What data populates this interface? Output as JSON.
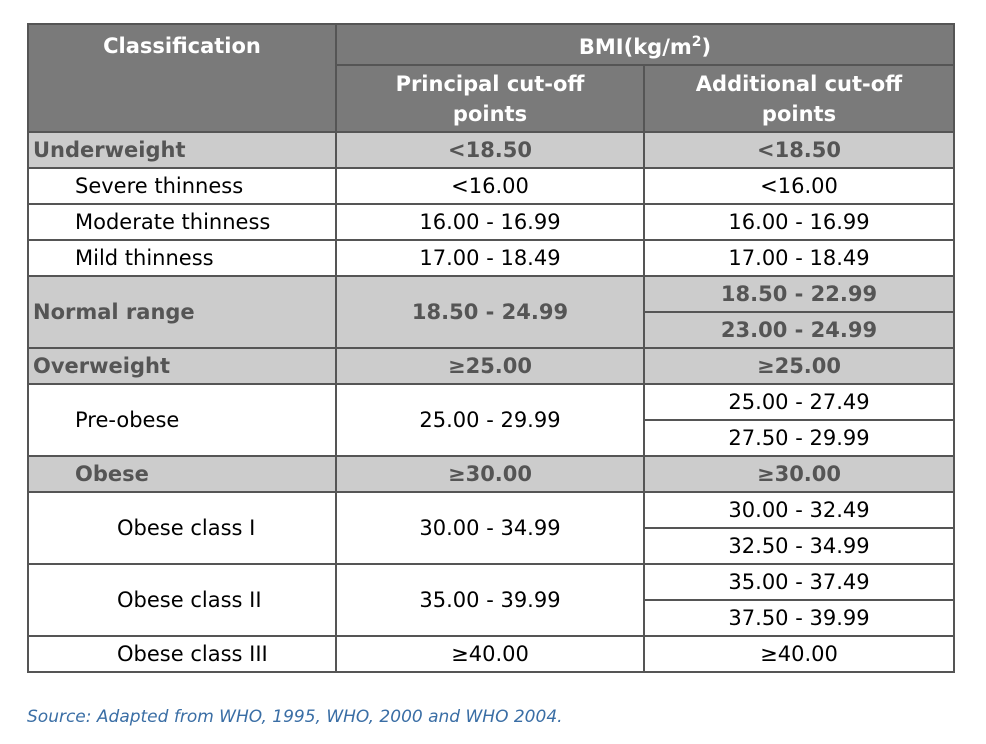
{
  "header": {
    "classification": "Classification",
    "bmi": "BMI(kg/m",
    "bmi_sup": "2",
    "bmi_close": ")",
    "principal": "Principal cut-off points",
    "additional": "Additional cut-off points"
  },
  "rows": {
    "underweight": {
      "label": "Underweight",
      "principal": "<18.50",
      "additional": "<18.50"
    },
    "severe": {
      "label": "Severe thinness",
      "principal": "<16.00",
      "additional": "<16.00"
    },
    "moderate": {
      "label": "Moderate thinness",
      "principal": "16.00 - 16.99",
      "additional": "16.00 - 16.99"
    },
    "mild": {
      "label": "Mild thinness",
      "principal": "17.00 - 18.49",
      "additional": "17.00 - 18.49"
    },
    "normal": {
      "label": "Normal range",
      "principal": "18.50 - 24.99",
      "additional_1": "18.50 - 22.99",
      "additional_2": "23.00 - 24.99"
    },
    "overweight": {
      "label": "Overweight",
      "principal": "≥25.00",
      "additional": "≥25.00"
    },
    "preobese": {
      "label": "Pre-obese",
      "principal": "25.00 - 29.99",
      "additional_1": "25.00 - 27.49",
      "additional_2": "27.50 - 29.99"
    },
    "obese": {
      "label": "Obese",
      "principal": "≥30.00",
      "additional": "≥30.00"
    },
    "obese1": {
      "label": "Obese class I",
      "principal": "30.00 - 34.99",
      "additional_1": "30.00 - 32.49",
      "additional_2": "32.50 - 34.99"
    },
    "obese2": {
      "label": "Obese class II",
      "principal": "35.00 - 39.99",
      "additional_1": "35.00 - 37.49",
      "additional_2": "37.50 - 39.99"
    },
    "obese3": {
      "label": "Obese class III",
      "principal": "≥40.00",
      "additional": "≥40.00"
    }
  },
  "source": "Source: Adapted from WHO, 1995, WHO, 2000 and WHO 2004.",
  "colors": {
    "header_bg": "#7a7a7a",
    "group_bg": "#cccccc",
    "group_text": "#555555",
    "source_text": "#3a6ea5"
  }
}
